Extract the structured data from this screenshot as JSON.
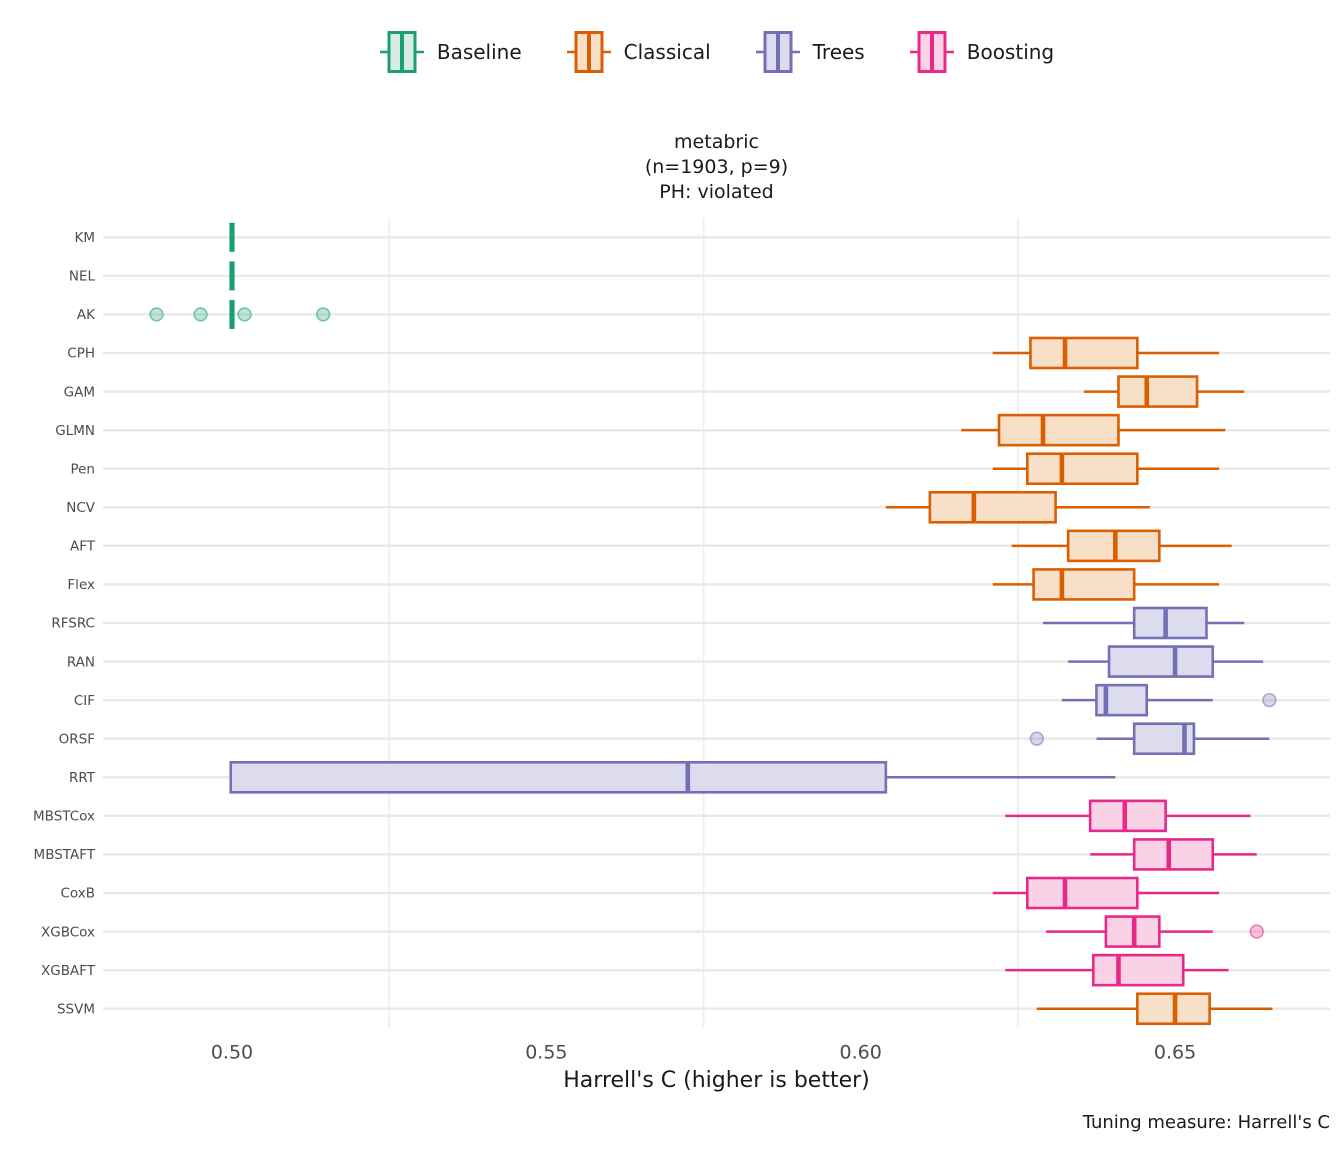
{
  "legend": {
    "items": [
      {
        "label": "Baseline"
      },
      {
        "label": "Classical"
      },
      {
        "label": "Trees"
      },
      {
        "label": "Boosting"
      }
    ]
  },
  "title": {
    "line1": "metabric",
    "line2": "(n=1903, p=9)",
    "line3": "PH: violated"
  },
  "axis": {
    "x_label": "Harrell's C (higher is better)"
  },
  "caption_text": "Tuning measure: Harrell's C",
  "chart_data": {
    "type": "boxplot-horizontal",
    "title": "metabric (n=1903, p=9) PH: violated",
    "xlabel": "Harrell's C (higher is better)",
    "xlim": [
      0.4795,
      0.6745
    ],
    "x_ticks": [
      0.5,
      0.55,
      0.6,
      0.65
    ],
    "x_tick_labels": [
      "0.50",
      "0.55",
      "0.60",
      "0.65"
    ],
    "minor_gridlines_x": [
      0.525,
      0.575,
      0.625
    ],
    "legend_position": "top",
    "grid": "light",
    "groups": {
      "Baseline": {
        "stroke": "#1B9E77",
        "fill": "#D7EDE4"
      },
      "Classical": {
        "stroke": "#D95F02",
        "fill": "#F8DFC8"
      },
      "Trees": {
        "stroke": "#7570B3",
        "fill": "#DCDCEE"
      },
      "Boosting": {
        "stroke": "#E7298A",
        "fill": "#FAD2E6"
      }
    },
    "rows": [
      {
        "model": "KM",
        "group": "Baseline",
        "degenerate_at": 0.5
      },
      {
        "model": "NEL",
        "group": "Baseline",
        "degenerate_at": 0.5
      },
      {
        "model": "AK",
        "group": "Baseline",
        "degenerate_at": 0.5,
        "outliers": [
          0.488,
          0.495,
          0.502,
          0.5145
        ]
      },
      {
        "model": "CPH",
        "group": "Classical",
        "whisker_low": 0.621,
        "q1": 0.627,
        "median": 0.6325,
        "q3": 0.644,
        "whisker_high": 0.657
      },
      {
        "model": "GAM",
        "group": "Classical",
        "whisker_low": 0.6355,
        "q1": 0.641,
        "median": 0.6455,
        "q3": 0.6535,
        "whisker_high": 0.661
      },
      {
        "model": "GLMN",
        "group": "Classical",
        "whisker_low": 0.616,
        "q1": 0.622,
        "median": 0.629,
        "q3": 0.641,
        "whisker_high": 0.658
      },
      {
        "model": "Pen",
        "group": "Classical",
        "whisker_low": 0.621,
        "q1": 0.6265,
        "median": 0.632,
        "q3": 0.644,
        "whisker_high": 0.657
      },
      {
        "model": "NCV",
        "group": "Classical",
        "whisker_low": 0.604,
        "q1": 0.611,
        "median": 0.618,
        "q3": 0.631,
        "whisker_high": 0.646
      },
      {
        "model": "AFT",
        "group": "Classical",
        "whisker_low": 0.624,
        "q1": 0.633,
        "median": 0.6405,
        "q3": 0.6475,
        "whisker_high": 0.659
      },
      {
        "model": "Flex",
        "group": "Classical",
        "whisker_low": 0.621,
        "q1": 0.6275,
        "median": 0.632,
        "q3": 0.6435,
        "whisker_high": 0.657
      },
      {
        "model": "RFSRC",
        "group": "Trees",
        "whisker_low": 0.629,
        "q1": 0.6435,
        "median": 0.6485,
        "q3": 0.655,
        "whisker_high": 0.661
      },
      {
        "model": "RAN",
        "group": "Trees",
        "whisker_low": 0.633,
        "q1": 0.6395,
        "median": 0.65,
        "q3": 0.656,
        "whisker_high": 0.664
      },
      {
        "model": "CIF",
        "group": "Trees",
        "whisker_low": 0.632,
        "q1": 0.6375,
        "median": 0.639,
        "q3": 0.6455,
        "whisker_high": 0.656,
        "outliers": [
          0.665
        ]
      },
      {
        "model": "ORSF",
        "group": "Trees",
        "whisker_low": 0.6375,
        "q1": 0.6435,
        "median": 0.6515,
        "q3": 0.653,
        "whisker_high": 0.665,
        "outliers": [
          0.628
        ]
      },
      {
        "model": "RRT",
        "group": "Trees",
        "whisker_low": 0.4998,
        "q1": 0.4998,
        "median": 0.5725,
        "q3": 0.604,
        "whisker_high": 0.6405
      },
      {
        "model": "MBSTCox",
        "group": "Boosting",
        "whisker_low": 0.623,
        "q1": 0.6365,
        "median": 0.642,
        "q3": 0.6485,
        "whisker_high": 0.662
      },
      {
        "model": "MBSTAFT",
        "group": "Boosting",
        "whisker_low": 0.6365,
        "q1": 0.6435,
        "median": 0.649,
        "q3": 0.656,
        "whisker_high": 0.663
      },
      {
        "model": "CoxB",
        "group": "Boosting",
        "whisker_low": 0.621,
        "q1": 0.6265,
        "median": 0.6325,
        "q3": 0.644,
        "whisker_high": 0.657
      },
      {
        "model": "XGBCox",
        "group": "Boosting",
        "whisker_low": 0.6295,
        "q1": 0.639,
        "median": 0.6435,
        "q3": 0.6475,
        "whisker_high": 0.656,
        "outliers": [
          0.663
        ]
      },
      {
        "model": "XGBAFT",
        "group": "Boosting",
        "whisker_low": 0.623,
        "q1": 0.637,
        "median": 0.641,
        "q3": 0.6513,
        "whisker_high": 0.6585
      },
      {
        "model": "SSVM",
        "group": "Classical",
        "whisker_low": 0.628,
        "q1": 0.644,
        "median": 0.65,
        "q3": 0.6555,
        "whisker_high": 0.6655
      }
    ]
  }
}
